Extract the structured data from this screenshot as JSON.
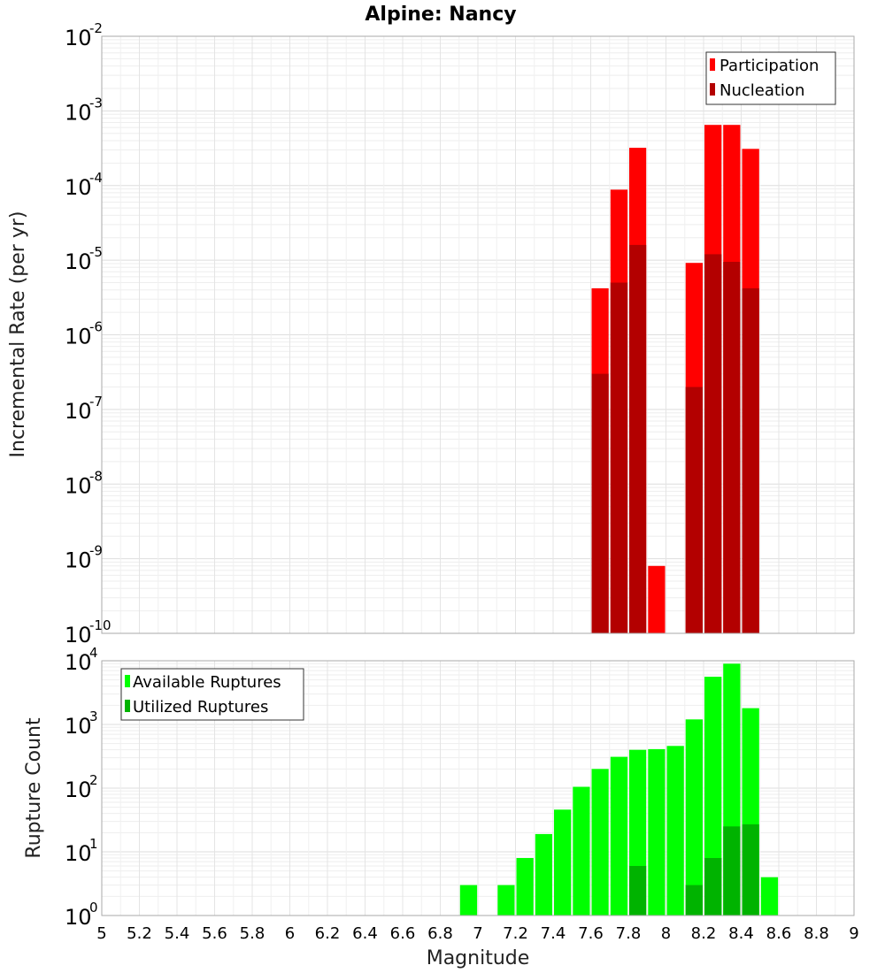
{
  "chart_data": [
    {
      "type": "bar",
      "title": "Alpine: Nancy",
      "xlabel": "",
      "ylabel": "Incremental Rate (per yr)",
      "yscale": "log",
      "ylim_exponents": [
        -10,
        -2
      ],
      "xlim": [
        5,
        9
      ],
      "grid": true,
      "legend_position": "top-right",
      "bin_width": 0.1,
      "series": [
        {
          "name": "Participation",
          "color": "#ff0000",
          "points": [
            {
              "x": 7.65,
              "y": 4.2e-06
            },
            {
              "x": 7.75,
              "y": 8.8e-05
            },
            {
              "x": 7.85,
              "y": 0.00032
            },
            {
              "x": 7.95,
              "y": 8e-10
            },
            {
              "x": 8.15,
              "y": 9.2e-06
            },
            {
              "x": 8.25,
              "y": 0.00065
            },
            {
              "x": 8.35,
              "y": 0.00065
            },
            {
              "x": 8.45,
              "y": 0.00031
            }
          ]
        },
        {
          "name": "Nucleation",
          "color": "#b30000",
          "points": [
            {
              "x": 7.65,
              "y": 3e-07
            },
            {
              "x": 7.75,
              "y": 5e-06
            },
            {
              "x": 7.85,
              "y": 1.6e-05
            },
            {
              "x": 8.15,
              "y": 2e-07
            },
            {
              "x": 8.25,
              "y": 1.2e-05
            },
            {
              "x": 8.35,
              "y": 9.5e-06
            },
            {
              "x": 8.45,
              "y": 4.2e-06
            }
          ]
        }
      ]
    },
    {
      "type": "bar",
      "title": "",
      "xlabel": "Magnitude",
      "ylabel": "Rupture Count",
      "yscale": "log",
      "ylim_exponents": [
        0,
        4
      ],
      "xlim": [
        5,
        9
      ],
      "grid": true,
      "legend_position": "top-left",
      "bin_width": 0.1,
      "x_ticks": [
        "5",
        "5.2",
        "5.4",
        "5.6",
        "5.8",
        "6",
        "6.2",
        "6.4",
        "6.6",
        "6.8",
        "7",
        "7.2",
        "7.4",
        "7.6",
        "7.8",
        "8",
        "8.2",
        "8.4",
        "8.6",
        "8.8",
        "9"
      ],
      "series": [
        {
          "name": "Available Ruptures",
          "color": "#00ff00",
          "points": [
            {
              "x": 6.55,
              "y": 1
            },
            {
              "x": 6.95,
              "y": 3
            },
            {
              "x": 7.05,
              "y": 1
            },
            {
              "x": 7.15,
              "y": 3
            },
            {
              "x": 7.25,
              "y": 8
            },
            {
              "x": 7.35,
              "y": 19
            },
            {
              "x": 7.45,
              "y": 46
            },
            {
              "x": 7.55,
              "y": 105
            },
            {
              "x": 7.65,
              "y": 200
            },
            {
              "x": 7.75,
              "y": 310
            },
            {
              "x": 7.85,
              "y": 400
            },
            {
              "x": 7.95,
              "y": 410
            },
            {
              "x": 8.05,
              "y": 460
            },
            {
              "x": 8.15,
              "y": 1200
            },
            {
              "x": 8.25,
              "y": 5600
            },
            {
              "x": 8.35,
              "y": 9000
            },
            {
              "x": 8.45,
              "y": 1800
            },
            {
              "x": 8.55,
              "y": 4
            }
          ]
        },
        {
          "name": "Utilized Ruptures",
          "color": "#00b300",
          "points": [
            {
              "x": 7.65,
              "y": 1
            },
            {
              "x": 7.75,
              "y": 1
            },
            {
              "x": 7.85,
              "y": 6
            },
            {
              "x": 7.95,
              "y": 1
            },
            {
              "x": 8.15,
              "y": 3
            },
            {
              "x": 8.25,
              "y": 8
            },
            {
              "x": 8.35,
              "y": 25
            },
            {
              "x": 8.45,
              "y": 27
            }
          ]
        }
      ]
    }
  ]
}
